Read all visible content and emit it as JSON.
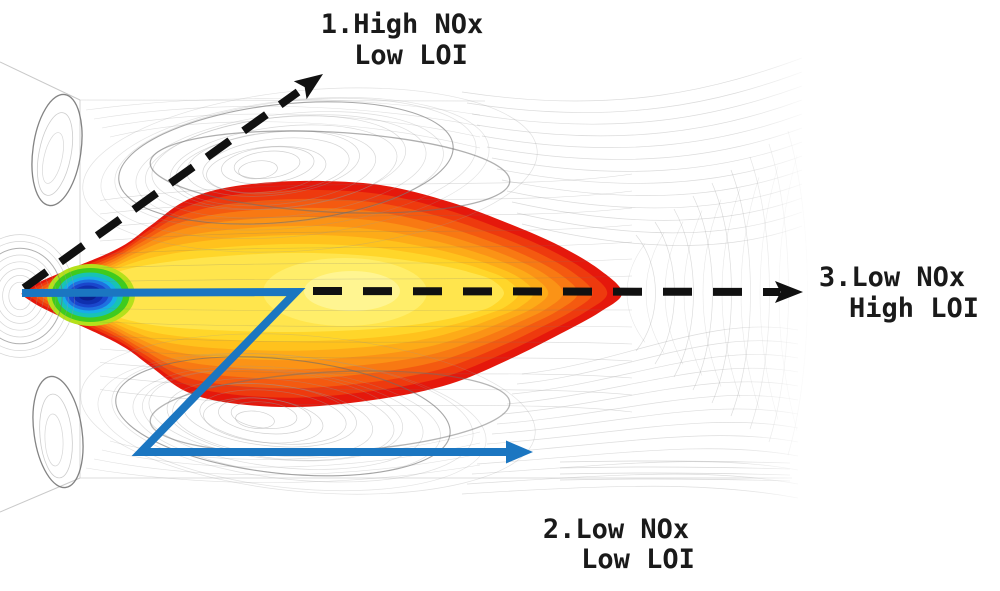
{
  "figure": {
    "background": "#ffffff",
    "labels": [
      {
        "line1": "1.High NOx",
        "line2": "Low LOI"
      },
      {
        "line1": "2.Low NOx",
        "line2": "Low LOI"
      },
      {
        "line1": "3.Low NOx",
        "line2": "High LOI"
      }
    ],
    "colors": {
      "text": "#1a1a1a",
      "arrow_black": "#111111",
      "arrow_blue": "#1b76c1",
      "streamline": "#9a9a9a",
      "streamline_dark": "#6d6d6d",
      "boundary_line": "#c3c3c3",
      "flame_palette": [
        "#e5180c",
        "#ee3a0e",
        "#f45a10",
        "#f87913",
        "#fb9316",
        "#fdab18",
        "#ffc21d",
        "#ffd62a",
        "#ffe54d"
      ],
      "flame_highlights": [
        "#ffee6b",
        "#fff69b"
      ],
      "core_palette": [
        "#b5e01b",
        "#3fcb1e",
        "#18c3b4",
        "#17aee8",
        "#1f70e0",
        "#1a46cc",
        "#0f2fae",
        "#0a1f8e"
      ]
    }
  }
}
